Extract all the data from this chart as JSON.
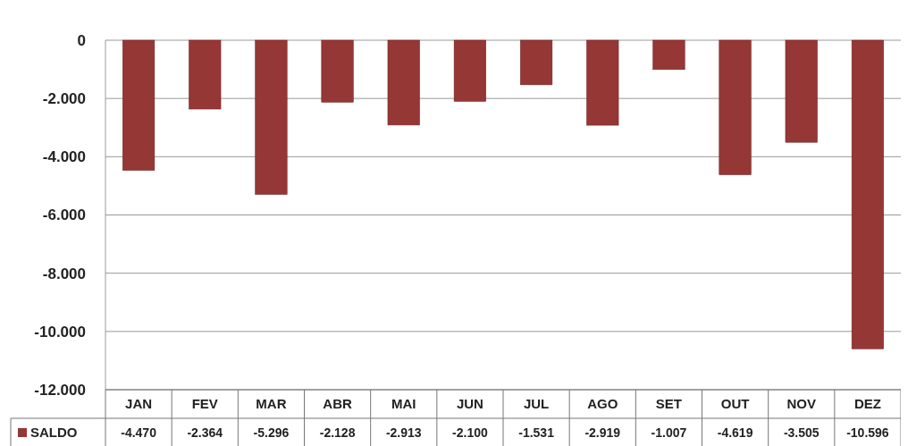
{
  "chart_data": {
    "type": "bar",
    "categories": [
      "JAN",
      "FEV",
      "MAR",
      "ABR",
      "MAI",
      "JUN",
      "JUL",
      "AGO",
      "SET",
      "OUT",
      "NOV",
      "DEZ"
    ],
    "series": [
      {
        "name": "SALDO",
        "color": "#953735",
        "values": [
          -4470,
          -2364,
          -5296,
          -2128,
          -2913,
          -2100,
          -1531,
          -2919,
          -1007,
          -4619,
          -3505,
          -10596
        ],
        "value_labels": [
          "-4.470",
          "-2.364",
          "-5.296",
          "-2.128",
          "-2.913",
          "-2.100",
          "-1.531",
          "-2.919",
          "-1.007",
          "-4.619",
          "-3.505",
          "-10.596"
        ]
      }
    ],
    "ylim": [
      -12000,
      0
    ],
    "yticks": [
      {
        "value": -12000,
        "label": "-12.000"
      },
      {
        "value": -10000,
        "label": "-10.000"
      },
      {
        "value": -8000,
        "label": "-8.000"
      },
      {
        "value": -6000,
        "label": "-6.000"
      },
      {
        "value": -4000,
        "label": "-4.000"
      },
      {
        "value": -2000,
        "label": "-2.000"
      },
      0
    ],
    "grid": "y",
    "legend": "bottom"
  }
}
